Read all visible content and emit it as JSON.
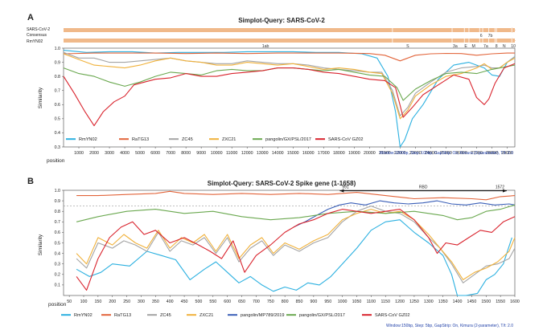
{
  "colors": {
    "RmYN02": "#2bb0e0",
    "RaTG13": "#e2643a",
    "ZC45": "#a4a4a4",
    "ZXC21": "#f0b13a",
    "pangolin/MP789/2019": "#3a5fb7",
    "pangolin/GX/PSL/2017": "#6aa84f",
    "SARS-CoV GZ02": "#d9232d",
    "genome": "#f0b98a"
  },
  "chart_data": [
    {
      "type": "line",
      "panel": "A",
      "title": "Simplot-Query: SARS-CoV-2",
      "ylabel": "Similarity",
      "xlabel": "position",
      "ylim": [
        0.3,
        1.0
      ],
      "yticks": [
        "1.0",
        "0.9",
        "0.8",
        "0.7",
        "0.6",
        "0.5",
        "0.4",
        "0.3"
      ],
      "xlim": [
        0,
        29500
      ],
      "xticks": [
        "1000",
        "2000",
        "3000",
        "4000",
        "5000",
        "6000",
        "7000",
        "8000",
        "9000",
        "10000",
        "11000",
        "12000",
        "13000",
        "14000",
        "15000",
        "16000",
        "17000",
        "18000",
        "19000",
        "20000",
        "21000",
        "22000",
        "23000",
        "24000",
        "25000",
        "26000",
        "27000",
        "28000",
        "29000"
      ],
      "genome_labels": {
        "row1": "SARS-CoV-2 Consensus",
        "row2": "RmYN02"
      },
      "genes": [
        {
          "label": "1ab",
          "x": 13200
        },
        {
          "label": "S",
          "x": 22500
        },
        {
          "label": "3a",
          "x": 25600
        },
        {
          "label": "E",
          "x": 26300
        },
        {
          "label": "M",
          "x": 26800
        },
        {
          "label": "6",
          "x": 27300
        },
        {
          "label": "7a",
          "x": 27600
        },
        {
          "label": "7b",
          "x": 27900
        },
        {
          "label": "8",
          "x": 28300
        },
        {
          "label": "N",
          "x": 28800
        },
        {
          "label": "10",
          "x": 29400
        }
      ],
      "note": "Window:1000bp, Step: 100bp, GapStrip: On, Kimura (2-parameter), T/t: 2.0",
      "series": [
        {
          "name": "RmYN02",
          "color_key": "RmYN02",
          "x": [
            0,
            1500,
            3000,
            4500,
            6000,
            7500,
            9000,
            10500,
            12000,
            13500,
            15000,
            16500,
            18000,
            19500,
            20500,
            21200,
            21700,
            22000,
            22300,
            22800,
            23500,
            24500,
            25500,
            26500,
            27500,
            28000,
            28500,
            29000,
            29500
          ],
          "values": [
            0.985,
            0.97,
            0.975,
            0.975,
            0.965,
            0.97,
            0.97,
            0.97,
            0.975,
            0.975,
            0.975,
            0.97,
            0.97,
            0.96,
            0.93,
            0.8,
            0.55,
            0.3,
            0.35,
            0.5,
            0.6,
            0.78,
            0.88,
            0.9,
            0.86,
            0.81,
            0.8,
            0.9,
            0.94
          ]
        },
        {
          "name": "RaTG13",
          "color_key": "RaTG13",
          "x": [
            0,
            2000,
            4000,
            6000,
            8000,
            10000,
            12000,
            14000,
            16000,
            18000,
            20000,
            21000,
            21500,
            22000,
            22500,
            23000,
            24000,
            25000,
            26000,
            27000,
            28000,
            29000,
            29500
          ],
          "values": [
            0.96,
            0.965,
            0.965,
            0.965,
            0.962,
            0.965,
            0.962,
            0.965,
            0.965,
            0.965,
            0.962,
            0.95,
            0.93,
            0.91,
            0.93,
            0.95,
            0.96,
            0.963,
            0.962,
            0.95,
            0.96,
            0.965,
            0.965
          ]
        },
        {
          "name": "ZC45",
          "color_key": "ZC45",
          "x": [
            0,
            1000,
            2000,
            3000,
            4000,
            5000,
            6000,
            7000,
            8000,
            9000,
            10000,
            11000,
            12000,
            13000,
            14000,
            15000,
            16000,
            17000,
            18000,
            19000,
            20000,
            20800,
            21500,
            22000,
            22500,
            23000,
            24000,
            25000,
            26000,
            27000,
            27500,
            28000,
            28500,
            29000,
            29500
          ],
          "values": [
            0.97,
            0.93,
            0.93,
            0.9,
            0.9,
            0.91,
            0.92,
            0.93,
            0.91,
            0.9,
            0.89,
            0.89,
            0.91,
            0.9,
            0.89,
            0.89,
            0.88,
            0.86,
            0.85,
            0.84,
            0.83,
            0.83,
            0.7,
            0.52,
            0.58,
            0.68,
            0.76,
            0.83,
            0.86,
            0.87,
            0.88,
            0.86,
            0.86,
            0.9,
            0.94
          ]
        },
        {
          "name": "ZXC21",
          "color_key": "ZXC21",
          "x": [
            0,
            1000,
            2000,
            3000,
            4000,
            5000,
            6000,
            7000,
            8000,
            9000,
            10000,
            11000,
            12000,
            13000,
            14000,
            15000,
            16000,
            17000,
            18000,
            19000,
            20000,
            20800,
            21500,
            22000,
            22500,
            23000,
            24000,
            25000,
            26000,
            27000,
            27500,
            28000,
            28500,
            29000,
            29500
          ],
          "values": [
            0.96,
            0.92,
            0.88,
            0.87,
            0.86,
            0.88,
            0.91,
            0.93,
            0.91,
            0.9,
            0.88,
            0.88,
            0.9,
            0.89,
            0.88,
            0.89,
            0.87,
            0.85,
            0.86,
            0.85,
            0.83,
            0.82,
            0.68,
            0.5,
            0.56,
            0.66,
            0.74,
            0.8,
            0.82,
            0.86,
            0.89,
            0.85,
            0.86,
            0.9,
            0.93
          ]
        },
        {
          "name": "pangolin/GX/PSL/2017",
          "color_key": "pangolin/GX/PSL/2017",
          "x": [
            0,
            1000,
            2000,
            3000,
            4000,
            5000,
            6000,
            7000,
            8000,
            9000,
            10000,
            11000,
            12000,
            13000,
            14000,
            15000,
            16000,
            17000,
            18000,
            19000,
            20000,
            21000,
            21800,
            22200,
            23000,
            24000,
            25000,
            26000,
            27000,
            28000,
            29000,
            29500
          ],
          "values": [
            0.86,
            0.82,
            0.8,
            0.76,
            0.73,
            0.76,
            0.8,
            0.83,
            0.82,
            0.81,
            0.84,
            0.85,
            0.84,
            0.84,
            0.86,
            0.86,
            0.85,
            0.84,
            0.85,
            0.83,
            0.81,
            0.8,
            0.72,
            0.63,
            0.71,
            0.77,
            0.82,
            0.83,
            0.82,
            0.85,
            0.87,
            0.88
          ]
        },
        {
          "name": "SARS-CoV GZ02",
          "color_key": "SARS-CoV GZ02",
          "x": [
            0,
            700,
            1400,
            2000,
            2600,
            3300,
            4000,
            4600,
            5300,
            6000,
            7000,
            8000,
            9000,
            10000,
            11000,
            12000,
            13000,
            14000,
            15000,
            16000,
            17000,
            18000,
            19000,
            20000,
            21000,
            21700,
            22200,
            22800,
            23500,
            24500,
            25500,
            26500,
            27000,
            27500,
            27800,
            28200,
            28800,
            29500
          ],
          "values": [
            0.8,
            0.68,
            0.55,
            0.45,
            0.55,
            0.62,
            0.66,
            0.74,
            0.76,
            0.78,
            0.79,
            0.82,
            0.8,
            0.8,
            0.82,
            0.83,
            0.84,
            0.86,
            0.86,
            0.85,
            0.83,
            0.82,
            0.8,
            0.78,
            0.77,
            0.72,
            0.51,
            0.58,
            0.67,
            0.74,
            0.81,
            0.78,
            0.65,
            0.6,
            0.64,
            0.75,
            0.86,
            0.89
          ]
        }
      ]
    },
    {
      "type": "line",
      "panel": "B",
      "title": "Simplot-Query: SARS-CoV-2 Spike gene (1-1658)",
      "ylabel": "Similarity",
      "xlabel": "position",
      "ylim": [
        0.0,
        1.0
      ],
      "yticks": [
        "1.0",
        "0.9",
        "0.8",
        "0.7",
        "0.6",
        "0.5",
        "0.4",
        "0.3",
        "0.2",
        "0.1"
      ],
      "xlim": [
        30,
        1600
      ],
      "xticks": [
        "50",
        "100",
        "150",
        "200",
        "250",
        "300",
        "350",
        "400",
        "450",
        "500",
        "550",
        "600",
        "650",
        "700",
        "750",
        "800",
        "850",
        "900",
        "950",
        "1000",
        "1050",
        "1100",
        "1150",
        "1200",
        "1250",
        "1300",
        "1350",
        "1400",
        "1450",
        "1500",
        "1550",
        "1600"
      ],
      "reference_line": 0.85,
      "rbd": {
        "start_label": "991",
        "label": "RBD",
        "end_label": "1572",
        "start": 991,
        "end": 1572
      },
      "note": "Window:150bp, Step: 5bp, GapStrip: On, Kimura (2-parameter), T/t: 2.0",
      "series": [
        {
          "name": "RmYN02",
          "color_key": "RmYN02",
          "x": [
            75,
            120,
            160,
            200,
            260,
            320,
            370,
            420,
            470,
            520,
            560,
            600,
            640,
            680,
            720,
            760,
            800,
            840,
            880,
            920,
            960,
            1000,
            1050,
            1100,
            1150,
            1200,
            1250,
            1300,
            1350,
            1380,
            1400,
            1430,
            1470,
            1500,
            1530,
            1560,
            1590
          ],
          "values": [
            0.25,
            0.18,
            0.22,
            0.3,
            0.28,
            0.42,
            0.38,
            0.34,
            0.15,
            0.25,
            0.32,
            0.22,
            0.12,
            0.18,
            0.1,
            0.04,
            0.08,
            0.05,
            0.12,
            0.1,
            0.18,
            0.3,
            0.45,
            0.62,
            0.7,
            0.72,
            0.6,
            0.5,
            0.38,
            0.2,
            0.0,
            0.0,
            0.02,
            0.15,
            0.2,
            0.3,
            0.55
          ]
        },
        {
          "name": "RaTG13",
          "color_key": "RaTG13",
          "x": [
            75,
            150,
            250,
            350,
            400,
            450,
            550,
            650,
            750,
            850,
            950,
            1050,
            1150,
            1250,
            1350,
            1450,
            1500,
            1550,
            1600
          ],
          "values": [
            0.95,
            0.95,
            0.96,
            0.97,
            0.99,
            0.97,
            0.96,
            0.97,
            0.96,
            0.97,
            0.96,
            0.98,
            0.95,
            0.92,
            0.93,
            0.92,
            0.91,
            0.94,
            0.95
          ]
        },
        {
          "name": "ZC45",
          "color_key": "ZC45",
          "x": [
            75,
            110,
            150,
            200,
            240,
            280,
            320,
            360,
            400,
            440,
            480,
            520,
            560,
            600,
            640,
            680,
            720,
            760,
            800,
            850,
            900,
            950,
            1000,
            1050,
            1100,
            1150,
            1200,
            1250,
            1300,
            1340,
            1380,
            1420,
            1460,
            1500,
            1540,
            1580,
            1600
          ],
          "values": [
            0.35,
            0.26,
            0.5,
            0.45,
            0.52,
            0.48,
            0.42,
            0.6,
            0.42,
            0.52,
            0.48,
            0.55,
            0.4,
            0.55,
            0.32,
            0.45,
            0.52,
            0.38,
            0.48,
            0.42,
            0.5,
            0.55,
            0.7,
            0.8,
            0.85,
            0.8,
            0.78,
            0.7,
            0.55,
            0.45,
            0.3,
            0.12,
            0.2,
            0.28,
            0.3,
            0.35,
            0.45
          ]
        },
        {
          "name": "ZXC21",
          "color_key": "ZXC21",
          "x": [
            75,
            110,
            150,
            200,
            240,
            280,
            320,
            360,
            400,
            440,
            480,
            520,
            560,
            600,
            640,
            680,
            720,
            760,
            800,
            850,
            900,
            950,
            1000,
            1050,
            1100,
            1150,
            1200,
            1250,
            1300,
            1340,
            1380,
            1420,
            1460,
            1500,
            1540,
            1580,
            1600
          ],
          "values": [
            0.4,
            0.3,
            0.55,
            0.48,
            0.58,
            0.5,
            0.45,
            0.62,
            0.45,
            0.55,
            0.5,
            0.58,
            0.42,
            0.58,
            0.35,
            0.48,
            0.55,
            0.4,
            0.5,
            0.44,
            0.52,
            0.58,
            0.72,
            0.78,
            0.82,
            0.78,
            0.8,
            0.72,
            0.58,
            0.45,
            0.32,
            0.15,
            0.22,
            0.26,
            0.32,
            0.42,
            0.55
          ]
        },
        {
          "name": "pangolin/MP789/2019",
          "color_key": "pangolin/MP789/2019",
          "x": [
            830,
            870,
            910,
            950,
            990,
            1030,
            1080,
            1130,
            1180,
            1230,
            1280,
            1330,
            1380,
            1430,
            1480,
            1530,
            1580,
            1600
          ],
          "values": [
            0.65,
            0.7,
            0.76,
            0.82,
            0.86,
            0.88,
            0.86,
            0.9,
            0.88,
            0.87,
            0.88,
            0.9,
            0.87,
            0.86,
            0.88,
            0.86,
            0.87,
            0.86
          ]
        },
        {
          "name": "pangolin/GX/PSL/2017",
          "color_key": "pangolin/GX/PSL/2017",
          "x": [
            75,
            150,
            250,
            350,
            450,
            550,
            650,
            750,
            850,
            950,
            1050,
            1150,
            1250,
            1300,
            1350,
            1400,
            1450,
            1500,
            1550,
            1600
          ],
          "values": [
            0.7,
            0.75,
            0.8,
            0.82,
            0.78,
            0.8,
            0.75,
            0.72,
            0.74,
            0.78,
            0.8,
            0.78,
            0.8,
            0.78,
            0.76,
            0.72,
            0.74,
            0.8,
            0.82,
            0.86
          ]
        },
        {
          "name": "SARS-CoV GZ02",
          "color_key": "SARS-CoV GZ02",
          "x": [
            75,
            110,
            150,
            190,
            230,
            270,
            310,
            350,
            400,
            450,
            500,
            540,
            580,
            620,
            660,
            700,
            750,
            800,
            850,
            900,
            950,
            1000,
            1050,
            1100,
            1150,
            1200,
            1250,
            1300,
            1330,
            1360,
            1400,
            1440,
            1480,
            1520,
            1560,
            1600
          ],
          "values": [
            0.18,
            0.05,
            0.35,
            0.55,
            0.65,
            0.7,
            0.58,
            0.62,
            0.5,
            0.55,
            0.48,
            0.42,
            0.35,
            0.52,
            0.22,
            0.38,
            0.48,
            0.6,
            0.68,
            0.72,
            0.78,
            0.82,
            0.8,
            0.78,
            0.8,
            0.82,
            0.72,
            0.55,
            0.4,
            0.5,
            0.48,
            0.55,
            0.62,
            0.6,
            0.7,
            0.75
          ]
        }
      ]
    }
  ]
}
